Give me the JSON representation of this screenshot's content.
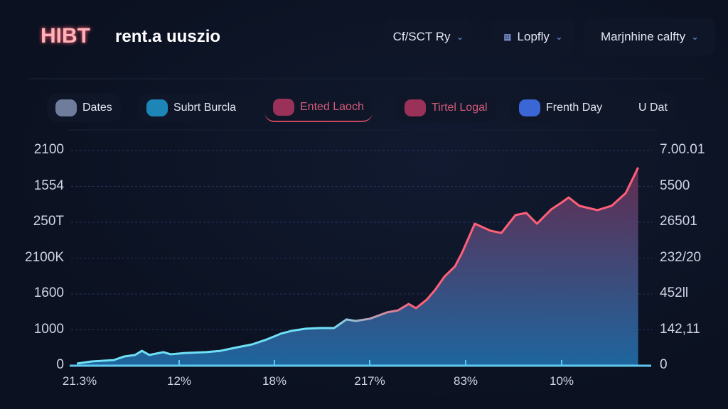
{
  "header": {
    "brand": "HIBT",
    "subtitle": "rent.a uuszio",
    "dropdowns": [
      {
        "label": "Cf/SCT Ry"
      },
      {
        "label": "Lopfly",
        "icon": "grid-icon"
      },
      {
        "label": "Marjnhine calfty"
      }
    ]
  },
  "legend": [
    {
      "label": "Dates",
      "color": "#6f7c9c"
    },
    {
      "label": "Subrt Burcla",
      "color": "#1d86b6"
    },
    {
      "label": "Ented Laoch",
      "color": "#9a3158",
      "active": true
    },
    {
      "label": "Tirtel Logal",
      "color": "#9a3158"
    },
    {
      "label": "Frenth Day",
      "color": "#3a66d6"
    },
    {
      "label": "U Dat"
    }
  ],
  "colors": {
    "line_start": "#6fe0f5",
    "line_end": "#ff5f78",
    "fill_top": "#6a2f55",
    "fill_bottom": "#1f6aa5"
  },
  "chart_data": {
    "type": "area",
    "title": "",
    "xlabel": "",
    "ylabel": "",
    "xlim": [
      0,
      100
    ],
    "ylim": [
      0,
      100
    ],
    "grid": true,
    "y_ticks_left": [
      "0",
      "1000",
      "1600",
      "2100K",
      "250T",
      "1554",
      "2100"
    ],
    "y_ticks_right": [
      "0",
      "142,11",
      "452ll",
      "232/20",
      "26501",
      "5500",
      "7.00.01"
    ],
    "x_ticks": [
      "21.3%",
      "12%",
      "18%",
      "217%",
      "83%",
      "10%"
    ],
    "series": [
      {
        "name": "Ented Laoch",
        "x": [
          0.4,
          3.1,
          6.9,
          8.8,
          10.7,
          11.9,
          13.2,
          15.7,
          17.0,
          19.5,
          23.3,
          25.8,
          28.3,
          31.4,
          34.0,
          36.5,
          38.4,
          40.9,
          43.4,
          45.9,
          48.1,
          49.7,
          52.2,
          55.3,
          57.2,
          59.1,
          60.4,
          62.3,
          63.8,
          65.4,
          67.3,
          68.6,
          70.8,
          73.6,
          75.5,
          78.0,
          79.9,
          81.8,
          84.3,
          86.2,
          87.4,
          89.3,
          92.5,
          95.0,
          97.5,
          99.7
        ],
        "y": [
          1.0,
          2.0,
          2.6,
          4.3,
          5.0,
          6.9,
          5.0,
          6.3,
          5.3,
          5.9,
          6.3,
          6.9,
          8.3,
          9.9,
          12.2,
          14.9,
          16.2,
          17.2,
          17.5,
          17.5,
          21.5,
          20.8,
          21.8,
          24.8,
          25.7,
          28.7,
          26.7,
          30.7,
          35.3,
          41.3,
          46.2,
          52.8,
          66.0,
          62.7,
          61.7,
          70.0,
          71.0,
          66.0,
          72.6,
          75.9,
          78.2,
          74.3,
          72.3,
          74.3,
          80.2,
          92.1
        ]
      }
    ]
  }
}
